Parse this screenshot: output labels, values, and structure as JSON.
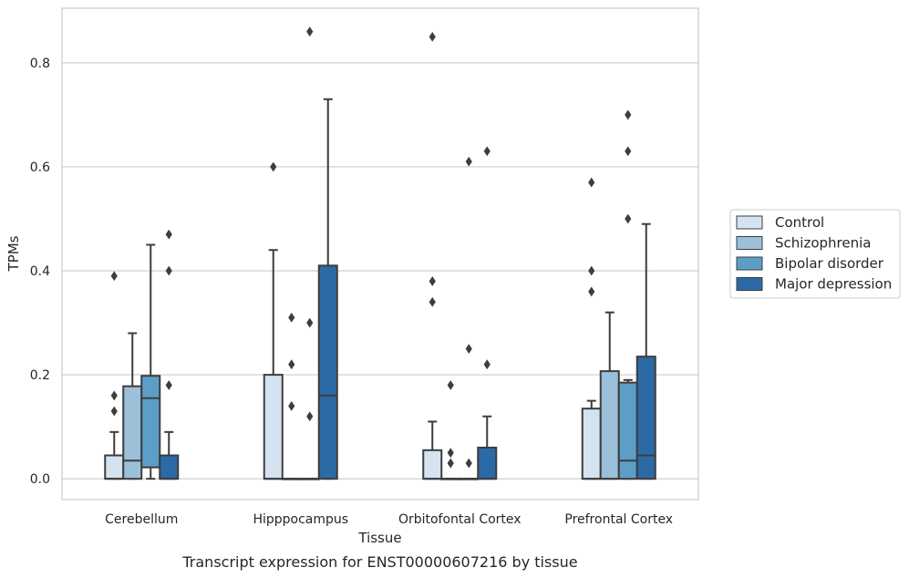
{
  "caption": "Transcript expression for ENST00000607216 by tissue",
  "chart_data": {
    "type": "box",
    "xlabel": "Tissue",
    "ylabel": "TPMs",
    "ylim": [
      -0.04,
      0.905
    ],
    "yticks": [
      0.0,
      0.2,
      0.4,
      0.6,
      0.8
    ],
    "ytick_labels": [
      "0.0",
      "0.2",
      "0.4",
      "0.6",
      "0.8"
    ],
    "categories": [
      "Cerebellum",
      "Hipppocampus",
      "Orbitofontal Cortex",
      "Prefrontal Cortex"
    ],
    "grid": "horizontal",
    "legend_position": "right",
    "series": [
      {
        "name": "Control",
        "color": "#d5e3f1",
        "boxes": [
          {
            "q1": 0.0,
            "median": 0.0,
            "q3": 0.045,
            "whislo": 0.0,
            "whishi": 0.09,
            "fliers": [
              0.39,
              0.16,
              0.13
            ]
          },
          {
            "q1": 0.0,
            "median": 0.0,
            "q3": 0.2,
            "whislo": 0.0,
            "whishi": 0.44,
            "fliers": [
              0.6
            ]
          },
          {
            "q1": 0.0,
            "median": 0.0,
            "q3": 0.055,
            "whislo": 0.0,
            "whishi": 0.11,
            "fliers": [
              0.85,
              0.38,
              0.34
            ]
          },
          {
            "q1": 0.0,
            "median": 0.0,
            "q3": 0.135,
            "whislo": 0.0,
            "whishi": 0.15,
            "fliers": [
              0.57,
              0.4,
              0.36
            ]
          }
        ]
      },
      {
        "name": "Schizophrenia",
        "color": "#9cc0da",
        "boxes": [
          {
            "q1": 0.0,
            "median": 0.035,
            "q3": 0.178,
            "whislo": 0.0,
            "whishi": 0.28,
            "fliers": []
          },
          {
            "q1": 0.0,
            "median": 0.0,
            "q3": 0.0,
            "whislo": 0.0,
            "whishi": 0.0,
            "fliers": [
              0.31,
              0.22,
              0.14
            ]
          },
          {
            "q1": 0.0,
            "median": 0.0,
            "q3": 0.0,
            "whislo": 0.0,
            "whishi": 0.0,
            "fliers": [
              0.18,
              0.05,
              0.03
            ]
          },
          {
            "q1": 0.0,
            "median": 0.0,
            "q3": 0.207,
            "whislo": 0.0,
            "whishi": 0.32,
            "fliers": []
          }
        ]
      },
      {
        "name": "Bipolar disorder",
        "color": "#5d9ec8",
        "boxes": [
          {
            "q1": 0.022,
            "median": 0.155,
            "q3": 0.198,
            "whislo": 0.0,
            "whishi": 0.45,
            "fliers": []
          },
          {
            "q1": 0.0,
            "median": 0.0,
            "q3": 0.0,
            "whislo": 0.0,
            "whishi": 0.0,
            "fliers": [
              0.86,
              0.3,
              0.12
            ]
          },
          {
            "q1": 0.0,
            "median": 0.0,
            "q3": 0.0,
            "whislo": 0.0,
            "whishi": 0.0,
            "fliers": [
              0.61,
              0.25,
              0.03
            ]
          },
          {
            "q1": 0.0,
            "median": 0.035,
            "q3": 0.185,
            "whislo": 0.0,
            "whishi": 0.19,
            "fliers": [
              0.7,
              0.63,
              0.5
            ]
          }
        ]
      },
      {
        "name": "Major depression",
        "color": "#2b6aa5",
        "boxes": [
          {
            "q1": 0.0,
            "median": 0.0,
            "q3": 0.045,
            "whislo": 0.0,
            "whishi": 0.09,
            "fliers": [
              0.47,
              0.4,
              0.18
            ]
          },
          {
            "q1": 0.0,
            "median": 0.16,
            "q3": 0.41,
            "whislo": 0.0,
            "whishi": 0.73,
            "fliers": []
          },
          {
            "q1": 0.0,
            "median": 0.0,
            "q3": 0.06,
            "whislo": 0.0,
            "whishi": 0.12,
            "fliers": [
              0.63,
              0.22
            ]
          },
          {
            "q1": 0.0,
            "median": 0.045,
            "q3": 0.235,
            "whislo": 0.0,
            "whishi": 0.49,
            "fliers": []
          }
        ]
      }
    ]
  }
}
